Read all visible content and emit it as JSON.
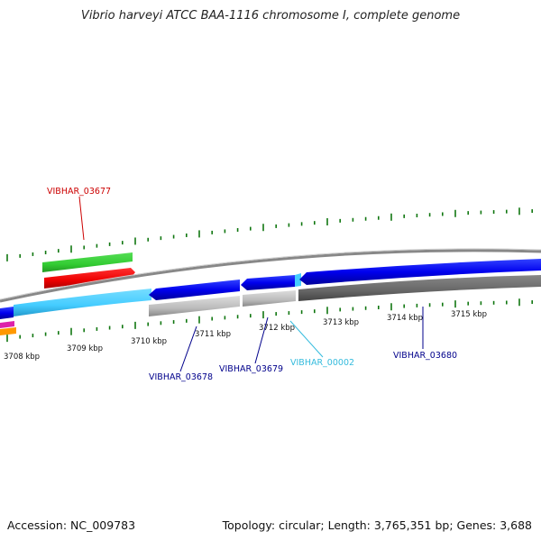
{
  "title": "Vibrio harveyi ATCC BAA-1116 chromosome I, complete genome",
  "footer": {
    "accession": "Accession: NC_009783",
    "stats": "Topology: circular; Length: 3,765,351 bp; Genes: 3,688"
  },
  "scale_labels": [
    "3708 kbp",
    "3709 kbp",
    "3710 kbp",
    "3711 kbp",
    "3712 kbp",
    "3713 kbp",
    "3714 kbp",
    "3715 kbp"
  ],
  "gene_labels": {
    "vibhar_03677": "VIBHAR_03677",
    "vibhar_03678": "VIBHAR_03678",
    "vibhar_03679": "VIBHAR_03679",
    "vibhar_00002": "VIBHAR_00002",
    "vibhar_03680": "VIBHAR_03680"
  },
  "colors": {
    "label_red": "#cc0000",
    "label_navy": "#00008b",
    "label_cyan": "#33bbdd",
    "gene_blue": "#0000ee",
    "gene_light_blue": "#44ccff",
    "gene_green": "#33cc33",
    "gene_red": "#ee0000",
    "gene_gray": "#bbbbbb",
    "gene_dark_gray": "#666666",
    "tick_green": "#117711"
  }
}
